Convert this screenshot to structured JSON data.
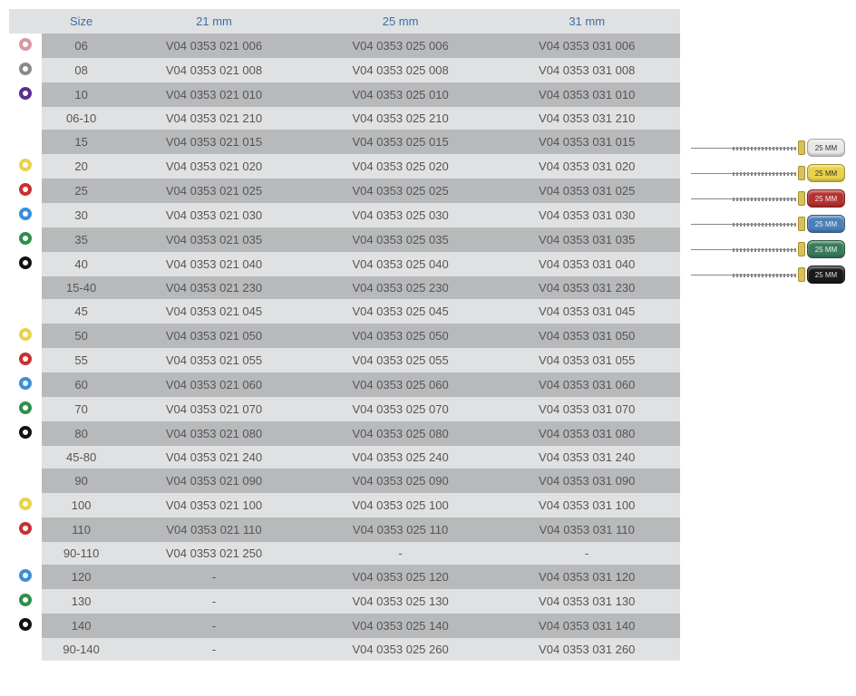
{
  "table": {
    "headers": [
      "Size",
      "21 mm",
      "25 mm",
      "31 mm"
    ],
    "header_color": "#3b6fa5",
    "header_bg": "#e0e1e2",
    "alt_row_bg": "#b8b9bb",
    "norm_row_bg": "#e0e1e2",
    "rows": [
      {
        "icon_color": "#d49aa0",
        "size": "06",
        "c21": "V04 0353 021 006",
        "c25": "V04 0353 025 006",
        "c31": "V04 0353 031 006",
        "alt": true
      },
      {
        "icon_color": "#8a8a8a",
        "size": "08",
        "c21": "V04 0353 021 008",
        "c25": "V04 0353 025 008",
        "c31": "V04 0353 031 008",
        "alt": false
      },
      {
        "icon_color": "#5a2f8f",
        "size": "10",
        "c21": "V04 0353 021 010",
        "c25": "V04 0353 025 010",
        "c31": "V04 0353 031 010",
        "alt": true
      },
      {
        "icon_color": null,
        "size": "06-10",
        "c21": "V04 0353 021 210",
        "c25": "V04 0353 025 210",
        "c31": "V04 0353 031 210",
        "alt": false
      },
      {
        "icon_color": "#ffffff",
        "size": "15",
        "c21": "V04 0353 021 015",
        "c25": "V04 0353 025 015",
        "c31": "V04 0353 031 015",
        "alt": true
      },
      {
        "icon_color": "#e8d24a",
        "size": "20",
        "c21": "V04 0353 021 020",
        "c25": "V04 0353 025 020",
        "c31": "V04 0353 031 020",
        "alt": false
      },
      {
        "icon_color": "#c93030",
        "size": "25",
        "c21": "V04 0353 021 025",
        "c25": "V04 0353 025 025",
        "c31": "V04 0353 031 025",
        "alt": true
      },
      {
        "icon_color": "#3a8fd8",
        "size": "30",
        "c21": "V04 0353 021 030",
        "c25": "V04 0353 025 030",
        "c31": "V04 0353 031 030",
        "alt": false
      },
      {
        "icon_color": "#2e8f4a",
        "size": "35",
        "c21": "V04 0353 021 035",
        "c25": "V04 0353 025 035",
        "c31": "V04 0353 031 035",
        "alt": true
      },
      {
        "icon_color": "#111111",
        "size": "40",
        "c21": "V04 0353 021 040",
        "c25": "V04 0353 025 040",
        "c31": "V04 0353 031 040",
        "alt": false
      },
      {
        "icon_color": null,
        "size": "15-40",
        "c21": "V04 0353 021 230",
        "c25": "V04 0353 025 230",
        "c31": "V04 0353 031 230",
        "alt": true
      },
      {
        "icon_color": "#ffffff",
        "size": "45",
        "c21": "V04 0353 021 045",
        "c25": "V04 0353 025 045",
        "c31": "V04 0353 031 045",
        "alt": false
      },
      {
        "icon_color": "#e8d24a",
        "size": "50",
        "c21": "V04 0353 021 050",
        "c25": "V04 0353 025 050",
        "c31": "V04 0353 031 050",
        "alt": true
      },
      {
        "icon_color": "#c93030",
        "size": "55",
        "c21": "V04 0353 021 055",
        "c25": "V04 0353 025 055",
        "c31": "V04 0353 031 055",
        "alt": false
      },
      {
        "icon_color": "#3a8fd8",
        "size": "60",
        "c21": "V04 0353 021 060",
        "c25": "V04 0353 025 060",
        "c31": "V04 0353 031 060",
        "alt": true
      },
      {
        "icon_color": "#2e8f4a",
        "size": "70",
        "c21": "V04 0353 021 070",
        "c25": "V04 0353 025 070",
        "c31": "V04 0353 031 070",
        "alt": false
      },
      {
        "icon_color": "#111111",
        "size": "80",
        "c21": "V04 0353 021 080",
        "c25": "V04 0353 025 080",
        "c31": "V04 0353 031 080",
        "alt": true
      },
      {
        "icon_color": null,
        "size": "45-80",
        "c21": "V04 0353 021 240",
        "c25": "V04 0353 025 240",
        "c31": "V04 0353 031 240",
        "alt": false
      },
      {
        "icon_color": "#ffffff",
        "size": "90",
        "c21": "V04 0353 021 090",
        "c25": "V04 0353 025 090",
        "c31": "V04 0353 031 090",
        "alt": true
      },
      {
        "icon_color": "#e8d24a",
        "size": "100",
        "c21": "V04 0353 021 100",
        "c25": "V04 0353 025 100",
        "c31": "V04 0353 031 100",
        "alt": false
      },
      {
        "icon_color": "#c93030",
        "size": "110",
        "c21": "V04 0353 021 110",
        "c25": "V04 0353 025 110",
        "c31": "V04 0353 031 110",
        "alt": true
      },
      {
        "icon_color": null,
        "size": "90-110",
        "c21": "V04 0353 021 250",
        "c25": "-",
        "c31": "-",
        "alt": false
      },
      {
        "icon_color": "#3a8fd8",
        "size": "120",
        "c21": "-",
        "c25": "V04 0353 025 120",
        "c31": "V04 0353 031 120",
        "alt": true
      },
      {
        "icon_color": "#2e8f4a",
        "size": "130",
        "c21": "-",
        "c25": "V04 0353 025 130",
        "c31": "V04 0353 031 130",
        "alt": false
      },
      {
        "icon_color": "#111111",
        "size": "140",
        "c21": "-",
        "c25": "V04 0353 025 140",
        "c31": "V04 0353 031 140",
        "alt": true
      },
      {
        "icon_color": null,
        "size": "90-140",
        "c21": "-",
        "c25": "V04 0353 025 260",
        "c31": "V04 0353 031 260",
        "alt": false
      }
    ]
  },
  "files_illustration": {
    "label": "25 MM",
    "handles": [
      {
        "color": "#e8e8e8",
        "text_color": "#333333"
      },
      {
        "color": "#e8d24a",
        "text_color": "#333333"
      },
      {
        "color": "#b83030",
        "text_color": "#f0f0f0"
      },
      {
        "color": "#4a7fb8",
        "text_color": "#f0f0f0"
      },
      {
        "color": "#3a7a5a",
        "text_color": "#f0f0f0"
      },
      {
        "color": "#1a1a1a",
        "text_color": "#e0e0e0"
      }
    ]
  }
}
